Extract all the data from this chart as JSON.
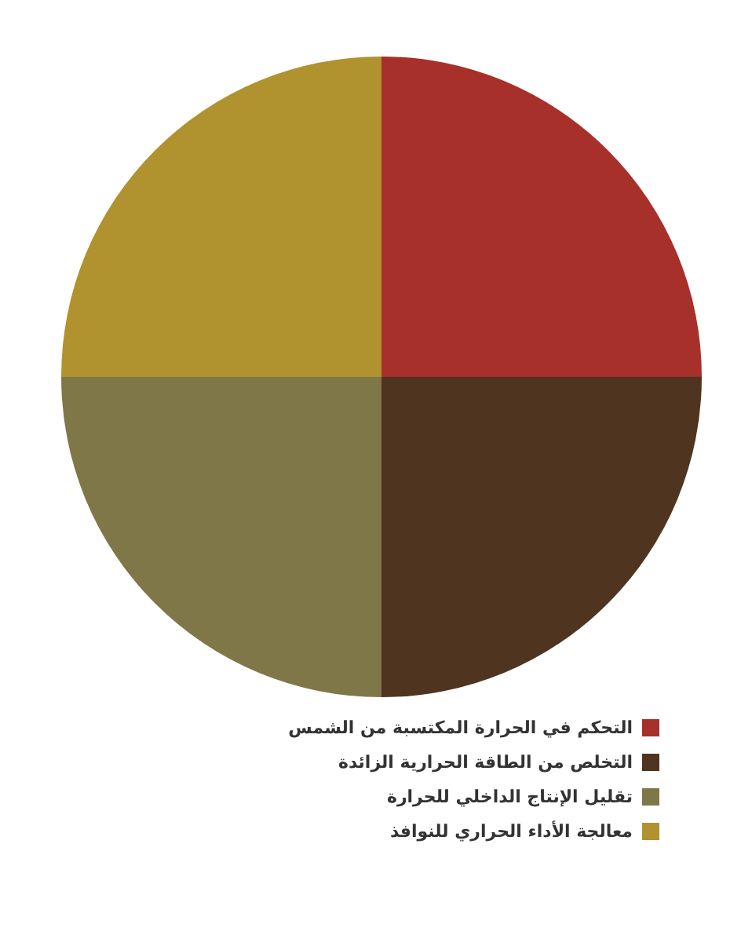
{
  "chart_data": {
    "type": "pie",
    "categories": [
      "التحكم في الحرارة المكتسبة من الشمس",
      "التخلص من الطاقة الحرارية الزائدة",
      "تقليل الإنتاج الداخلي للحرارة",
      "معالجة الأداء الحراري للنوافذ"
    ],
    "values": [
      25,
      25,
      25,
      25
    ],
    "colors": [
      "#a8302a",
      "#4f3420",
      "#7f7748",
      "#b0922f"
    ],
    "legend": "bottom right"
  }
}
